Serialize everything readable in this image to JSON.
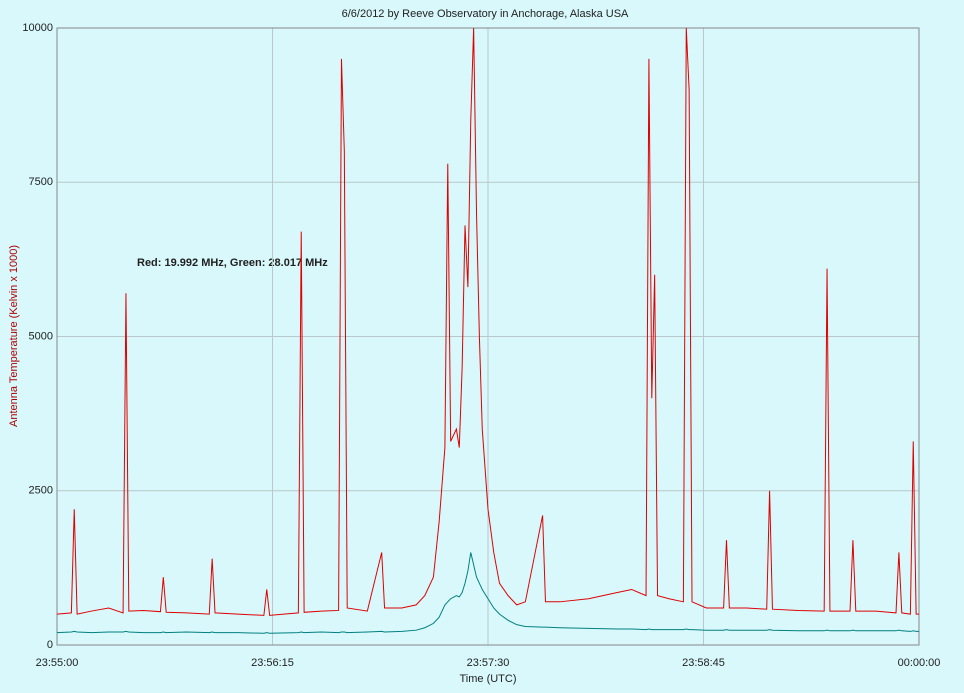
{
  "chart_data": {
    "type": "line",
    "title": "6/6/2012  by  Reeve Observatory  in  Anchorage, Alaska  USA",
    "annotation": "Red: 19.992 MHz, Green: 28.017 MHz",
    "x_label": "Time (UTC)",
    "y_label": "Antenna Temperature (Kelvin x 1000)",
    "xlim": [
      "23:55:00",
      "00:00:00"
    ],
    "xticks": [
      "23:55:00",
      "23:56:15",
      "23:57:30",
      "23:58:45",
      "00:00:00"
    ],
    "ylim": [
      0,
      10000
    ],
    "yticks": [
      0,
      2500,
      5000,
      7500,
      10000
    ],
    "grid": true,
    "x": [
      "23:55:00",
      "23:55:05",
      "23:55:06",
      "23:55:07",
      "23:55:12",
      "23:55:18",
      "23:55:23",
      "23:55:24",
      "23:55:25",
      "23:55:30",
      "23:55:36",
      "23:55:37",
      "23:55:38",
      "23:55:45",
      "23:55:53",
      "23:55:54",
      "23:55:55",
      "23:56:03",
      "23:56:12",
      "23:56:13",
      "23:56:14",
      "23:56:24",
      "23:56:25",
      "23:56:26",
      "23:56:32",
      "23:56:38",
      "23:56:39",
      "23:56:40",
      "23:56:41",
      "23:56:48",
      "23:56:53",
      "23:56:54",
      "23:57:00",
      "23:57:05",
      "23:57:08",
      "23:57:11",
      "23:57:13",
      "23:57:15",
      "23:57:16",
      "23:57:17",
      "23:57:19",
      "23:57:20",
      "23:57:21",
      "23:57:22",
      "23:57:23",
      "23:57:24",
      "23:57:25",
      "23:57:26",
      "23:57:27",
      "23:57:28",
      "23:57:30",
      "23:57:32",
      "23:57:34",
      "23:57:37",
      "23:57:40",
      "23:57:43",
      "23:57:49",
      "23:57:50",
      "23:57:55",
      "23:58:05",
      "23:58:15",
      "23:58:20",
      "23:58:25",
      "23:58:26",
      "23:58:27",
      "23:58:28",
      "23:58:29",
      "23:58:33",
      "23:58:38",
      "23:58:39",
      "23:58:40",
      "23:58:41",
      "23:58:46",
      "23:58:52",
      "23:58:53",
      "23:58:54",
      "23:59:00",
      "23:59:07",
      "23:59:08",
      "23:59:09",
      "23:59:18",
      "23:59:27",
      "23:59:28",
      "23:59:29",
      "23:59:36",
      "23:59:37",
      "23:59:38",
      "23:59:45",
      "23:59:52",
      "23:59:53",
      "23:59:54",
      "23:59:57",
      "23:59:58",
      "23:59:59",
      "00:00:00"
    ],
    "series": [
      {
        "name": "Red",
        "color": "#e00000",
        "values": [
          500,
          520,
          2200,
          500,
          550,
          600,
          520,
          5700,
          550,
          560,
          540,
          1100,
          530,
          520,
          500,
          1400,
          520,
          500,
          480,
          900,
          480,
          520,
          6700,
          530,
          550,
          560,
          9500,
          8000,
          600,
          550,
          1500,
          600,
          600,
          650,
          800,
          1100,
          2000,
          3200,
          7800,
          3300,
          3500,
          3200,
          4500,
          6800,
          5800,
          8500,
          10000,
          7000,
          5000,
          3500,
          2200,
          1500,
          1000,
          800,
          650,
          700,
          2100,
          700,
          700,
          750,
          850,
          900,
          800,
          9500,
          4000,
          6000,
          800,
          750,
          700,
          10000,
          9000,
          700,
          600,
          600,
          1700,
          600,
          600,
          580,
          2500,
          580,
          560,
          550,
          6100,
          550,
          550,
          1700,
          550,
          550,
          520,
          1500,
          520,
          500,
          3300,
          500,
          500
        ]
      },
      {
        "name": "Green",
        "color": "#008080",
        "values": [
          200,
          210,
          220,
          210,
          200,
          210,
          210,
          220,
          210,
          200,
          200,
          210,
          200,
          210,
          200,
          210,
          200,
          200,
          190,
          200,
          190,
          200,
          210,
          200,
          210,
          200,
          210,
          210,
          200,
          210,
          220,
          210,
          220,
          240,
          280,
          350,
          450,
          650,
          700,
          750,
          800,
          780,
          850,
          1000,
          1200,
          1500,
          1300,
          1100,
          1000,
          900,
          750,
          600,
          500,
          400,
          330,
          300,
          290,
          290,
          280,
          270,
          260,
          260,
          250,
          260,
          250,
          250,
          250,
          250,
          250,
          260,
          250,
          250,
          240,
          240,
          250,
          240,
          240,
          240,
          250,
          240,
          230,
          230,
          240,
          230,
          230,
          240,
          230,
          230,
          230,
          240,
          230,
          220,
          230,
          220,
          220
        ]
      }
    ]
  }
}
